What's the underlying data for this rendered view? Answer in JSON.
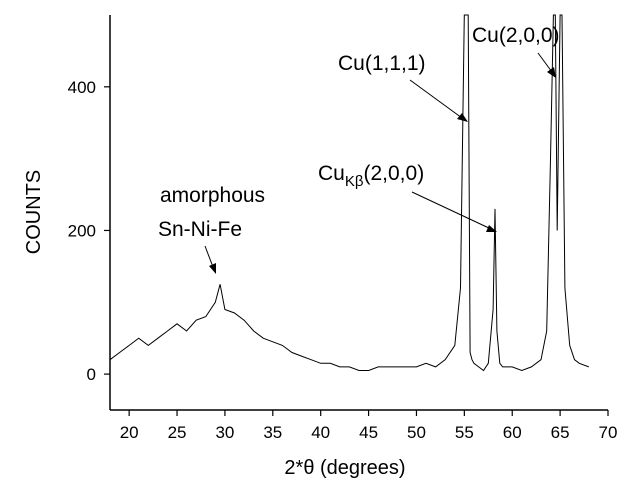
{
  "chart_data": {
    "type": "line",
    "xlabel": "2*θ (degrees)",
    "ylabel": "COUNTS",
    "xlim": [
      18,
      70
    ],
    "ylim": [
      -50,
      500
    ],
    "x_ticks": [
      20,
      25,
      30,
      35,
      40,
      45,
      50,
      55,
      60,
      65,
      70
    ],
    "y_ticks": [
      0,
      200,
      400
    ],
    "grid": false,
    "line_color": "#000000",
    "series": [
      {
        "x": [
          18.0,
          19.0,
          20.0,
          21.0,
          22.0,
          23.0,
          24.0,
          25.0,
          26.0,
          27.0,
          28.0,
          29.0,
          29.5,
          30.0,
          31.0,
          32.0,
          33.0,
          34.0,
          35.0,
          36.0,
          37.0,
          38.0,
          39.0,
          40.0,
          41.0,
          42.0,
          43.0,
          44.0,
          45.0,
          46.0,
          47.0,
          48.0,
          49.0,
          50.0,
          51.0,
          52.0,
          53.0,
          54.0,
          54.6,
          55.0,
          55.2,
          55.4,
          55.6,
          55.8,
          56.0,
          56.5,
          57.0,
          57.5,
          58.0,
          58.2,
          58.4,
          58.7,
          59.0,
          60.0,
          61.0,
          62.0,
          63.0,
          63.6,
          64.0,
          64.3,
          64.5,
          64.7,
          65.0,
          65.2,
          65.5,
          66.0,
          66.5,
          67.0,
          68.0
        ],
        "values": [
          20,
          30,
          40,
          50,
          40,
          50,
          60,
          70,
          60,
          75,
          80,
          100,
          125,
          90,
          85,
          75,
          60,
          50,
          45,
          40,
          30,
          25,
          20,
          15,
          15,
          10,
          10,
          5,
          5,
          10,
          10,
          10,
          10,
          10,
          15,
          10,
          20,
          40,
          120,
          500,
          500,
          500,
          30,
          20,
          15,
          10,
          5,
          15,
          90,
          230,
          60,
          15,
          10,
          10,
          5,
          10,
          20,
          60,
          300,
          500,
          500,
          200,
          500,
          500,
          120,
          40,
          20,
          15,
          10
        ]
      }
    ],
    "annotations": [
      {
        "id": "cu111",
        "text": "Cu(1,1,1)",
        "x": 55.3,
        "y": 400
      },
      {
        "id": "cukb200",
        "main": "Cu",
        "sub": "Kβ",
        "rest": "(2,0,0)",
        "x": 58.1,
        "y": 195
      },
      {
        "id": "cu200",
        "text": "Cu(2,0,0)",
        "x": 64.9,
        "y": 410
      },
      {
        "id": "amorphous",
        "line1": "amorphous",
        "line2": "Sn-Ni-Fe",
        "x": 29.5,
        "y": 140
      }
    ]
  }
}
